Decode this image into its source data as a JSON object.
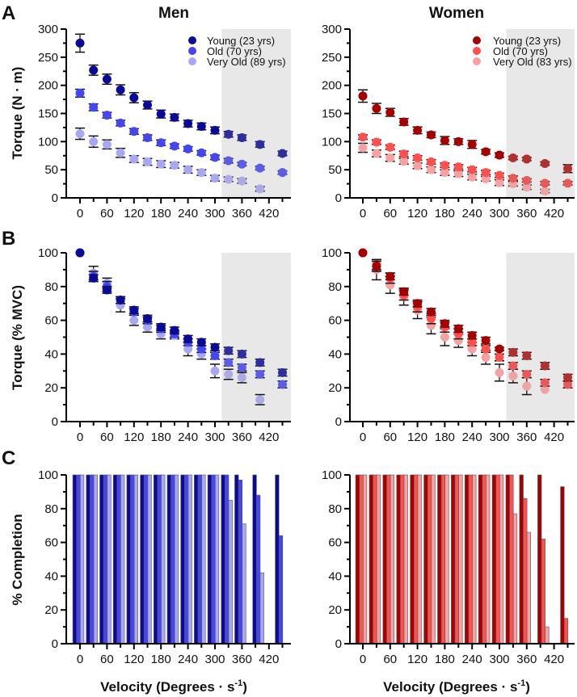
{
  "figure": {
    "panel_letters": [
      "A",
      "B",
      "C"
    ],
    "column_titles": [
      "Men",
      "Women"
    ],
    "x_axis_title_prefix": "Velocity (Degrees · s",
    "x_axis_title_sup": "-1",
    "x_axis_title_suffix": ")",
    "shade_color": "#e8e8e8"
  },
  "colors": {
    "men": [
      "#0a0a96",
      "#4646f0",
      "#a8a8f2"
    ],
    "men_shaded": [
      "#2e2ea0",
      "#5c5ce6",
      "#ababe6"
    ],
    "women": [
      "#a50000",
      "#ff5050",
      "#f7a2a2"
    ],
    "women_shaded": [
      "#b03030",
      "#e85a5a",
      "#eba5a5"
    ]
  },
  "chart_data": [
    {
      "id": "A-men",
      "type": "scatter",
      "title": "Men",
      "xlabel": "",
      "ylabel": "Torque (N · m)",
      "x": [
        0,
        30,
        60,
        90,
        120,
        150,
        180,
        210,
        240,
        270,
        300,
        330,
        360,
        400,
        450
      ],
      "xticks": [
        0,
        60,
        120,
        180,
        240,
        300,
        360,
        420
      ],
      "xlim": [
        -15,
        465
      ],
      "ylim": [
        0,
        300
      ],
      "yticks": [
        0,
        50,
        100,
        150,
        200,
        250,
        300
      ],
      "shaded_region_x": [
        315,
        465
      ],
      "legend": "top-right",
      "series": [
        {
          "name": "Young (23 yrs)",
          "values": [
            275,
            227,
            211,
            192,
            178,
            165,
            149,
            143,
            132,
            127,
            120,
            113,
            107,
            95,
            79
          ],
          "err": [
            16,
            9,
            9,
            9,
            9,
            7,
            7,
            6,
            6,
            6,
            6,
            5,
            5,
            5,
            4
          ]
        },
        {
          "name": "Old (70 yrs)",
          "values": [
            186,
            161,
            147,
            133,
            118,
            107,
            98,
            92,
            87,
            80,
            72,
            66,
            60,
            53,
            45
          ],
          "err": [
            7,
            6,
            5,
            5,
            5,
            5,
            5,
            4,
            4,
            4,
            4,
            4,
            3,
            3,
            3
          ]
        },
        {
          "name": "Very Old (89 yrs)",
          "values": [
            114,
            100,
            95,
            80,
            69,
            64,
            60,
            58,
            50,
            45,
            35,
            33,
            30,
            16,
            null
          ],
          "err": [
            10,
            10,
            8,
            8,
            6,
            6,
            6,
            5,
            6,
            5,
            5,
            4,
            4,
            4,
            null
          ]
        }
      ]
    },
    {
      "id": "A-women",
      "type": "scatter",
      "title": "Women",
      "xlabel": "",
      "ylabel": "",
      "x": [
        0,
        30,
        60,
        90,
        120,
        150,
        180,
        210,
        240,
        270,
        300,
        330,
        360,
        400,
        450
      ],
      "xticks": [
        0,
        60,
        120,
        180,
        240,
        300,
        360,
        420
      ],
      "xlim": [
        -15,
        465
      ],
      "ylim": [
        0,
        300
      ],
      "yticks": [
        0,
        50,
        100,
        150,
        200,
        250,
        300
      ],
      "shaded_region_x": [
        315,
        465
      ],
      "legend": "top-right",
      "series": [
        {
          "name": "Young (23 yrs)",
          "values": [
            181,
            159,
            152,
            135,
            120,
            112,
            102,
            100,
            95,
            82,
            76,
            71,
            69,
            61,
            52
          ],
          "err": [
            11,
            9,
            7,
            6,
            6,
            5,
            7,
            5,
            7,
            4,
            4,
            3,
            3,
            3,
            7
          ]
        },
        {
          "name": "Old (70 yrs)",
          "values": [
            108,
            99,
            90,
            78,
            71,
            64,
            58,
            55,
            50,
            45,
            40,
            35,
            31,
            26,
            26
          ],
          "err": [
            4,
            4,
            4,
            5,
            4,
            4,
            4,
            4,
            4,
            4,
            4,
            4,
            3,
            3,
            3
          ]
        },
        {
          "name": "Very Old (83 yrs)",
          "values": [
            89,
            79,
            71,
            65,
            57,
            50,
            45,
            43,
            37,
            34,
            27,
            25,
            19,
            12,
            null
          ],
          "err": [
            8,
            6,
            6,
            5,
            5,
            5,
            5,
            5,
            5,
            4,
            5,
            4,
            4,
            3,
            null
          ]
        }
      ]
    },
    {
      "id": "B-men",
      "type": "scatter",
      "title": "",
      "xlabel": "",
      "ylabel": "Torque (% MVC)",
      "x": [
        0,
        30,
        60,
        90,
        120,
        150,
        180,
        210,
        240,
        270,
        300,
        330,
        360,
        400,
        450
      ],
      "xticks": [
        0,
        60,
        120,
        180,
        240,
        300,
        360,
        420
      ],
      "xlim": [
        -15,
        465
      ],
      "ylim": [
        0,
        100
      ],
      "yticks": [
        0,
        20,
        40,
        60,
        80,
        100
      ],
      "shaded_region_x": [
        315,
        465
      ],
      "series": [
        {
          "name": "Young (23 yrs)",
          "values": [
            100,
            85,
            78,
            72,
            66,
            61,
            56,
            54,
            49,
            47,
            44,
            42,
            40,
            35,
            29
          ],
          "err": [
            0,
            2,
            2,
            2,
            2,
            2,
            2,
            2,
            2,
            2,
            2,
            2,
            2,
            2,
            2
          ]
        },
        {
          "name": "Old (70 yrs)",
          "values": [
            100,
            86,
            80,
            72,
            65,
            60,
            55,
            52,
            47,
            43,
            39,
            35,
            32,
            28,
            22
          ],
          "err": [
            0,
            3,
            3,
            2,
            2,
            2,
            2,
            2,
            2,
            2,
            2,
            2,
            2,
            2,
            2
          ]
        },
        {
          "name": "Very Old (89 yrs)",
          "values": [
            100,
            88,
            82,
            69,
            60,
            56,
            52,
            51,
            43,
            40,
            30,
            28,
            26,
            13,
            null
          ],
          "err": [
            0,
            4,
            3,
            4,
            3,
            3,
            3,
            2,
            4,
            3,
            4,
            3,
            3,
            3,
            null
          ]
        }
      ]
    },
    {
      "id": "B-women",
      "type": "scatter",
      "title": "",
      "xlabel": "",
      "ylabel": "",
      "x": [
        0,
        30,
        60,
        90,
        120,
        150,
        180,
        210,
        240,
        270,
        300,
        330,
        360,
        400,
        450
      ],
      "xticks": [
        0,
        60,
        120,
        180,
        240,
        300,
        360,
        420
      ],
      "xlim": [
        -15,
        465
      ],
      "ylim": [
        0,
        100
      ],
      "yticks": [
        0,
        20,
        40,
        60,
        80,
        100
      ],
      "shaded_region_x": [
        315,
        465
      ],
      "series": [
        {
          "name": "Young (23 yrs)",
          "values": [
            100,
            92,
            86,
            77,
            70,
            65,
            58,
            55,
            51,
            48,
            43,
            41,
            39,
            33,
            26
          ],
          "err": [
            0,
            3,
            2,
            2,
            2,
            2,
            2,
            2,
            2,
            2,
            1,
            2,
            2,
            2,
            2
          ]
        },
        {
          "name": "Old (70 yrs)",
          "values": [
            100,
            93,
            85,
            75,
            68,
            61,
            56,
            52,
            47,
            43,
            38,
            33,
            28,
            23,
            22
          ],
          "err": [
            0,
            3,
            3,
            3,
            3,
            3,
            3,
            3,
            2,
            2,
            2,
            2,
            2,
            2,
            2
          ]
        },
        {
          "name": "Very Old (83 yrs)",
          "values": [
            100,
            90,
            81,
            74,
            66,
            57,
            50,
            48,
            43,
            38,
            29,
            27,
            21,
            19,
            null
          ],
          "err": [
            0,
            6,
            5,
            5,
            5,
            5,
            5,
            4,
            4,
            4,
            5,
            4,
            5,
            0,
            null
          ]
        }
      ]
    },
    {
      "id": "C-men",
      "type": "bar",
      "title": "",
      "xlabel": "Velocity (Degrees · s-1)",
      "ylabel": "% Completion",
      "x": [
        0,
        30,
        60,
        90,
        120,
        150,
        180,
        210,
        240,
        270,
        300,
        330,
        360,
        400,
        450
      ],
      "xticks": [
        0,
        60,
        120,
        180,
        240,
        300,
        360,
        420
      ],
      "xlim": [
        -15,
        465
      ],
      "ylim": [
        0,
        100
      ],
      "yticks": [
        0,
        20,
        40,
        60,
        80,
        100
      ],
      "series": [
        {
          "name": "Young (23 yrs)",
          "values": [
            100,
            100,
            100,
            100,
            100,
            100,
            100,
            100,
            100,
            100,
            100,
            100,
            100,
            100,
            100
          ]
        },
        {
          "name": "Old (70 yrs)",
          "values": [
            100,
            100,
            100,
            100,
            100,
            100,
            100,
            100,
            100,
            100,
            100,
            100,
            97,
            88,
            64
          ]
        },
        {
          "name": "Very Old (89 yrs)",
          "values": [
            100,
            100,
            100,
            100,
            100,
            100,
            100,
            100,
            100,
            100,
            100,
            85,
            71,
            42,
            0
          ]
        }
      ]
    },
    {
      "id": "C-women",
      "type": "bar",
      "title": "",
      "xlabel": "Velocity (Degrees · s-1)",
      "ylabel": "",
      "x": [
        0,
        30,
        60,
        90,
        120,
        150,
        180,
        210,
        240,
        270,
        300,
        330,
        360,
        400,
        450
      ],
      "xticks": [
        0,
        60,
        120,
        180,
        240,
        300,
        360,
        420
      ],
      "xlim": [
        -15,
        465
      ],
      "ylim": [
        0,
        100
      ],
      "yticks": [
        0,
        20,
        40,
        60,
        80,
        100
      ],
      "series": [
        {
          "name": "Young (23 yrs)",
          "values": [
            100,
            100,
            100,
            100,
            100,
            100,
            100,
            100,
            100,
            100,
            100,
            100,
            100,
            100,
            93
          ]
        },
        {
          "name": "Old (70 yrs)",
          "values": [
            100,
            100,
            100,
            100,
            100,
            100,
            100,
            100,
            100,
            100,
            100,
            100,
            86,
            62,
            15
          ]
        },
        {
          "name": "Very Old (83 yrs)",
          "values": [
            100,
            100,
            100,
            100,
            100,
            100,
            100,
            100,
            100,
            100,
            100,
            77,
            66,
            10,
            0
          ]
        }
      ]
    }
  ]
}
